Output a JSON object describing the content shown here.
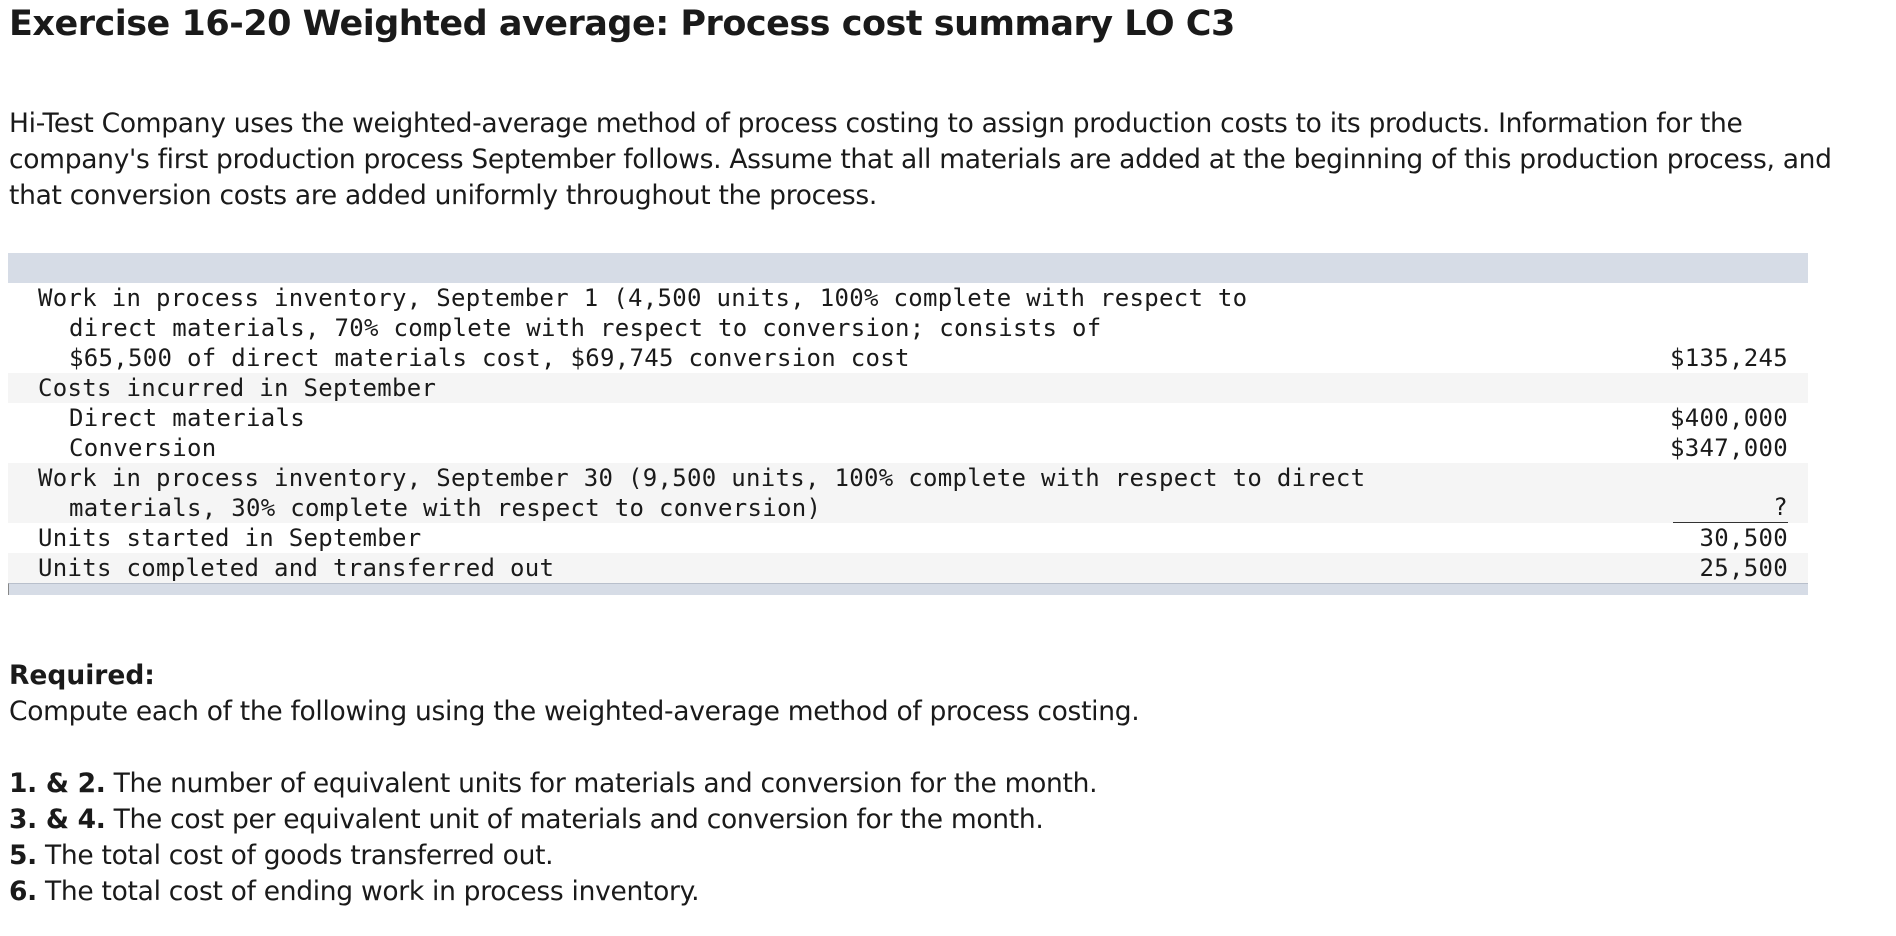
{
  "title": "Exercise 16-20 Weighted average: Process cost summary LO C3",
  "intro": "Hi-Test Company uses the weighted-average method of process costing to assign production costs to its products. Information for the company's first production process September follows. Assume that all materials are added at the beginning of this production process, and that conversion costs are added uniformly throughout the process.",
  "table": {
    "wip_sep1_line1": "Work in process inventory, September 1 (4,500 units, 100% complete with respect to",
    "wip_sep1_line2": "direct materials, 70% complete with respect to conversion; consists of",
    "wip_sep1_line3": "$65,500 of direct materials cost, $69,745 conversion cost",
    "wip_sep1_amount": "$135,245",
    "costs_incurred": "Costs incurred in September",
    "direct_materials": "Direct materials",
    "direct_materials_amount": "$400,000",
    "conversion": "Conversion",
    "conversion_amount": "$347,000",
    "wip_sep30_line1": "Work in process inventory, September 30 (9,500 units, 100% complete with respect to direct",
    "wip_sep30_line2": "materials, 30% complete with respect to conversion)",
    "wip_sep30_amount": "?",
    "units_started": "Units started in September",
    "units_started_amount": "30,500",
    "units_completed": "Units completed and transferred out",
    "units_completed_amount": "25,500"
  },
  "required": {
    "heading": "Required:",
    "text": "Compute each of the following using the weighted-average method of process costing.",
    "items": [
      {
        "num": "1. & 2.",
        "text": " The number of equivalent units for materials and conversion for the month."
      },
      {
        "num": "3. & 4.",
        "text": " The cost per equivalent unit of materials and conversion for the month."
      },
      {
        "num": "5.",
        "text": " The total cost of goods transferred out."
      },
      {
        "num": "6.",
        "text": " The total cost of ending work in process inventory."
      }
    ]
  }
}
